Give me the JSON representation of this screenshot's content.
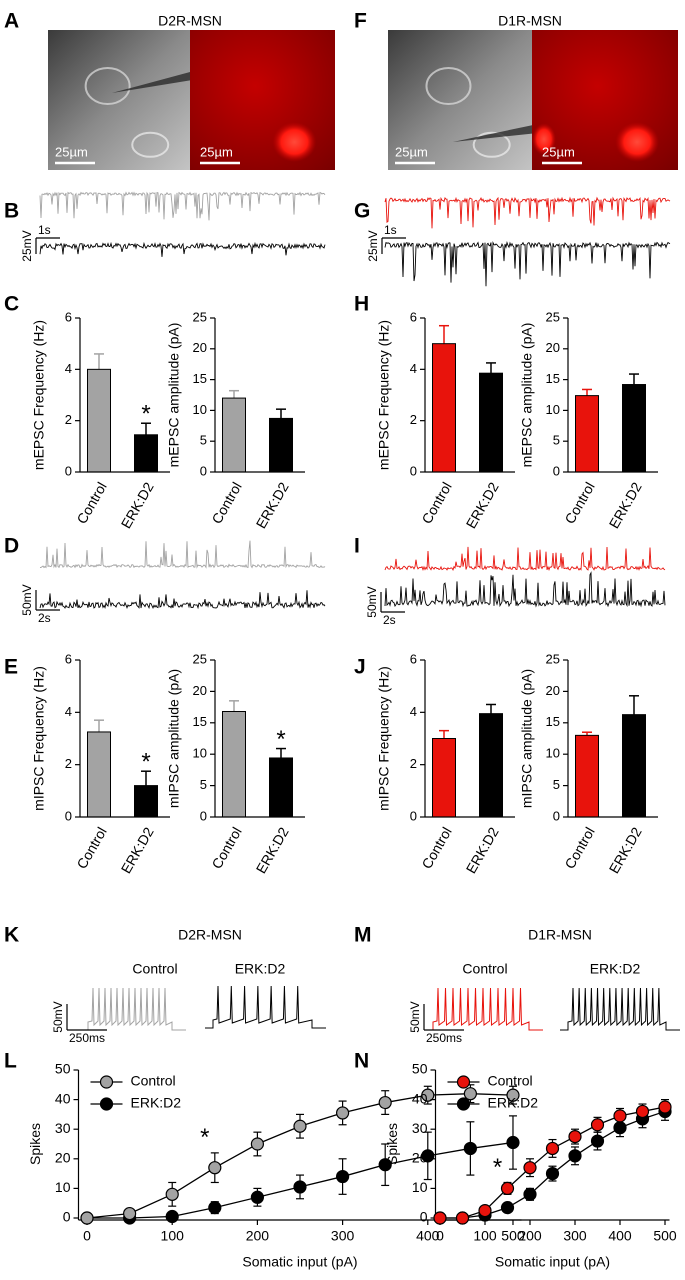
{
  "panel_letters": [
    "A",
    "B",
    "C",
    "D",
    "E",
    "F",
    "G",
    "H",
    "I",
    "J",
    "K",
    "L",
    "M",
    "N"
  ],
  "headers": [
    "D2R-MSN",
    "D1R-MSN",
    "D2R-MSN",
    "D1R-MSN"
  ],
  "scale_bars": [
    "25µm",
    "25µm",
    "25µm",
    "25µm",
    "1s",
    "25mV",
    "1s",
    "25mV",
    "50mV",
    "2s",
    "50mV",
    "2s",
    "50mV",
    "250ms",
    "50mV",
    "250ms"
  ],
  "trace_labels": [
    "Control",
    "ERK:D2",
    "Control",
    "ERK:D2"
  ],
  "chart_data": [
    {
      "type": "bar",
      "ylabel": "mEPSC Frequency (Hz)",
      "categories": [
        "Control",
        "ERK:D2"
      ],
      "values": [
        4.0,
        1.45
      ],
      "errors": [
        0.6,
        0.45
      ],
      "colors": [
        "#a3a3a3",
        "#000000"
      ],
      "ylim": [
        0,
        6
      ],
      "yticks": [
        0,
        2,
        4,
        6
      ],
      "annotations": [
        {
          "text": "*",
          "category": "ERK:D2"
        }
      ]
    },
    {
      "type": "bar",
      "ylabel": "mEPSC amplitude (pA)",
      "categories": [
        "Control",
        "ERK:D2"
      ],
      "values": [
        12,
        8.7
      ],
      "errors": [
        1.2,
        1.5
      ],
      "colors": [
        "#a3a3a3",
        "#000000"
      ],
      "ylim": [
        0,
        25
      ],
      "yticks": [
        0,
        5,
        10,
        15,
        20,
        25
      ]
    },
    {
      "type": "bar",
      "ylabel": "mEPSC Frequency (Hz)",
      "categories": [
        "Control",
        "ERK:D2"
      ],
      "values": [
        5.0,
        3.85
      ],
      "errors": [
        0.7,
        0.4
      ],
      "colors": [
        "#e8130c",
        "#000000"
      ],
      "ylim": [
        0,
        6
      ],
      "yticks": [
        0,
        2,
        4,
        6
      ]
    },
    {
      "type": "bar",
      "ylabel": "mEPSC amplitude (pA)",
      "categories": [
        "Control",
        "ERK:D2"
      ],
      "values": [
        12.4,
        14.2
      ],
      "errors": [
        1.0,
        1.7
      ],
      "colors": [
        "#e8130c",
        "#000000"
      ],
      "ylim": [
        0,
        25
      ],
      "yticks": [
        0,
        5,
        10,
        15,
        20,
        25
      ]
    },
    {
      "type": "bar",
      "ylabel": "mIPSC Frequency (Hz)",
      "categories": [
        "Control",
        "ERK:D2"
      ],
      "values": [
        3.25,
        1.2
      ],
      "errors": [
        0.45,
        0.55
      ],
      "colors": [
        "#a3a3a3",
        "#000000"
      ],
      "ylim": [
        0,
        6
      ],
      "yticks": [
        0,
        2,
        4,
        6
      ],
      "annotations": [
        {
          "text": "*",
          "category": "ERK:D2"
        }
      ]
    },
    {
      "type": "bar",
      "ylabel": "mIPSC amplitude (pA)",
      "categories": [
        "Control",
        "ERK:D2"
      ],
      "values": [
        16.8,
        9.4
      ],
      "errors": [
        1.7,
        1.5
      ],
      "colors": [
        "#a3a3a3",
        "#000000"
      ],
      "ylim": [
        0,
        25
      ],
      "yticks": [
        0,
        5,
        10,
        15,
        20,
        25
      ],
      "annotations": [
        {
          "text": "*",
          "category": "ERK:D2"
        }
      ]
    },
    {
      "type": "bar",
      "ylabel": "mIPSC Frequency (Hz)",
      "categories": [
        "Control",
        "ERK:D2"
      ],
      "values": [
        3.0,
        3.95
      ],
      "errors": [
        0.3,
        0.35
      ],
      "colors": [
        "#e8130c",
        "#000000"
      ],
      "ylim": [
        0,
        6
      ],
      "yticks": [
        0,
        2,
        4,
        6
      ]
    },
    {
      "type": "bar",
      "ylabel": "mIPSC amplitude (pA)",
      "categories": [
        "Control",
        "ERK:D2"
      ],
      "values": [
        13,
        16.3
      ],
      "errors": [
        0.5,
        3.0
      ],
      "colors": [
        "#e8130c",
        "#000000"
      ],
      "ylim": [
        0,
        25
      ],
      "yticks": [
        0,
        5,
        10,
        15,
        20,
        25
      ]
    },
    {
      "type": "line",
      "xlabel": "Somatic input (pA)",
      "ylabel": "Spikes",
      "legend": "top-left",
      "x": [
        0,
        50,
        100,
        150,
        200,
        250,
        300,
        350,
        400,
        450,
        500
      ],
      "series": [
        {
          "name": "ERK:D2",
          "color": "#000000",
          "values": [
            0,
            0,
            0.5,
            3.5,
            7,
            10.5,
            14,
            18,
            21,
            23.5,
            25.5
          ],
          "errors": [
            0,
            0,
            0.5,
            2,
            3,
            4,
            6,
            7,
            8,
            9,
            9
          ]
        },
        {
          "name": "Control",
          "color": "#a3a3a3",
          "values": [
            0,
            1.5,
            8,
            17,
            25,
            31,
            35.5,
            39,
            41.5,
            42,
            41.5
          ],
          "errors": [
            0.5,
            1,
            4,
            5,
            4,
            4,
            4,
            4,
            3,
            3,
            3
          ]
        }
      ],
      "xlim": [
        -10,
        510
      ],
      "ylim": [
        0,
        50
      ],
      "xticks": [
        0,
        100,
        200,
        300,
        400,
        500
      ],
      "yticks": [
        0,
        10,
        20,
        30,
        40,
        50
      ],
      "annotations": [
        {
          "text": "*",
          "x": 150
        }
      ]
    },
    {
      "type": "line",
      "xlabel": "Somatic input (pA)",
      "ylabel": "Spikes",
      "legend": "top-left",
      "x": [
        0,
        50,
        100,
        150,
        200,
        250,
        300,
        350,
        400,
        450,
        500
      ],
      "series": [
        {
          "name": "ERK:D2",
          "color": "#000000",
          "values": [
            0,
            0,
            1,
            3.5,
            8,
            15,
            21,
            26,
            30.5,
            33.5,
            36
          ],
          "errors": [
            0,
            0,
            0.5,
            1,
            2,
            2.5,
            3,
            3,
            3,
            3,
            3
          ]
        },
        {
          "name": "Control",
          "color": "#e8130c",
          "values": [
            0,
            0,
            2.5,
            10,
            17,
            23.5,
            27.5,
            31.5,
            34.5,
            36,
            37.5
          ],
          "errors": [
            0,
            0,
            1,
            2,
            3,
            3,
            2.5,
            2.5,
            2.5,
            2.5,
            2.5
          ]
        }
      ],
      "xlim": [
        -10,
        510
      ],
      "ylim": [
        0,
        50
      ],
      "xticks": [
        0,
        100,
        200,
        300,
        400,
        500
      ],
      "yticks": [
        0,
        10,
        20,
        30,
        40,
        50
      ],
      "annotations": [
        {
          "text": "*",
          "x": 150
        }
      ]
    }
  ]
}
